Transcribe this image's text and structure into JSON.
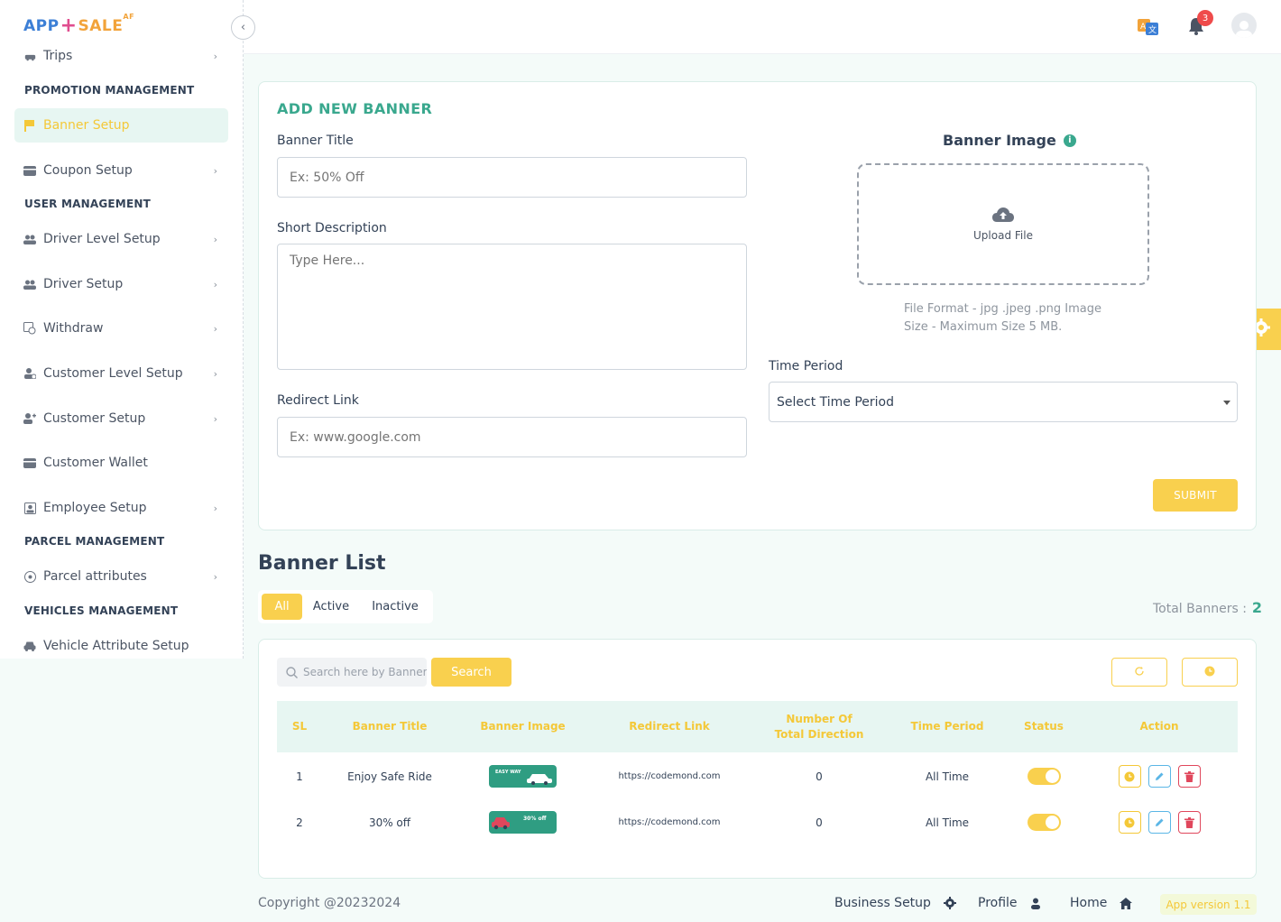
{
  "logo": {
    "part1": "APP",
    "part2": "+",
    "part3": "SALE",
    "part4": "AF"
  },
  "topbar": {
    "notification_count": "3"
  },
  "sidebar": {
    "partial_item": "Trips",
    "sections": {
      "promotion": "PROMOTION MANAGEMENT",
      "user": "USER MANAGEMENT",
      "parcel": "PARCEL MANAGEMENT",
      "vehicles": "VEHICLES MANAGEMENT"
    },
    "items": [
      {
        "label": "Banner Setup",
        "icon": "flag-icon"
      },
      {
        "label": "Coupon Setup",
        "icon": "ticket-icon"
      },
      {
        "label": "Driver Level Setup",
        "icon": "users-icon"
      },
      {
        "label": "Driver Setup",
        "icon": "users-icon"
      },
      {
        "label": "Withdraw",
        "icon": "withdraw-icon"
      },
      {
        "label": "Customer Level Setup",
        "icon": "user-level-icon"
      },
      {
        "label": "Customer Setup",
        "icon": "user-plus-icon"
      },
      {
        "label": "Customer Wallet",
        "icon": "wallet-icon"
      },
      {
        "label": "Employee Setup",
        "icon": "badge-icon"
      },
      {
        "label": "Parcel attributes",
        "icon": "plus-circle-icon"
      },
      {
        "label": "Vehicle Attribute Setup",
        "icon": "car-icon"
      }
    ]
  },
  "form": {
    "title": "ADD NEW BANNER",
    "banner_title_label": "Banner Title",
    "banner_title_placeholder": "Ex: 50% Off",
    "short_desc_label": "Short Description",
    "short_desc_placeholder": "Type Here...",
    "redirect_label": "Redirect Link",
    "redirect_placeholder": "Ex: www.google.com",
    "banner_image_label": "Banner Image",
    "upload_label": "Upload File",
    "hint_line1": "File Format - jpg .jpeg .png Image",
    "hint_line2": "Size - Maximum Size 5 MB.",
    "time_period_label": "Time Period",
    "time_period_value": "Select Time Period",
    "submit_label": "SUBMIT"
  },
  "list": {
    "title": "Banner List",
    "tabs": [
      "All",
      "Active",
      "Inactive"
    ],
    "active_tab": "All",
    "total_label": "Total Banners :",
    "total_value": "2",
    "search_placeholder": "Search here by Banner",
    "search_button": "Search",
    "columns": [
      "SL",
      "Banner Title",
      "Banner Image",
      "Redirect Link",
      "Number Of\nTotal Direction",
      "Time Period",
      "Status",
      "Action"
    ],
    "rows": [
      {
        "sl": "1",
        "title": "Enjoy Safe Ride",
        "thumb_text": "EASY WAY",
        "link": "https://codemond.com",
        "directions": "0",
        "period": "All Time",
        "status": true
      },
      {
        "sl": "2",
        "title": "30% off",
        "thumb_text": "30% off",
        "link": "https://codemond.com",
        "directions": "0",
        "period": "All Time",
        "status": true
      }
    ]
  },
  "footer": {
    "copyright": "Copyright @20232024",
    "business_setup": "Business Setup",
    "profile": "Profile",
    "home": "Home",
    "version": "App version  1.1"
  },
  "colors": {
    "primary": "#3aa88e",
    "accent": "#f9d04e",
    "danger": "#e0475c",
    "info": "#5bb6e6"
  }
}
